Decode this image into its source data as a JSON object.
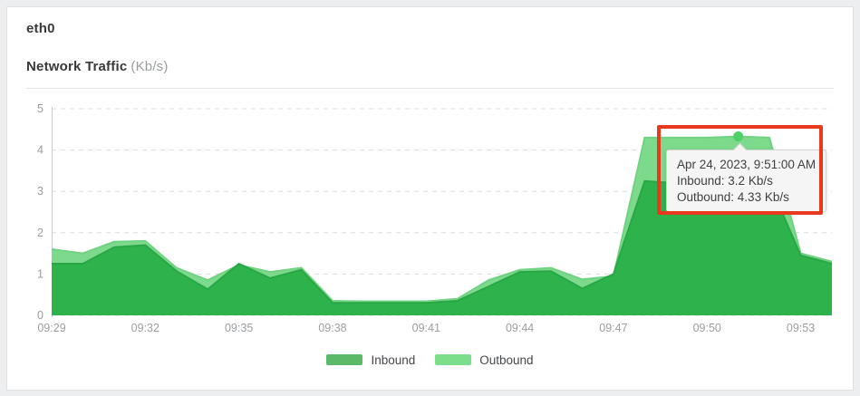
{
  "header": {
    "interface": "eth0",
    "title": "Network Traffic",
    "unit": "(Kb/s)"
  },
  "chart_data": {
    "type": "area",
    "title": "Network Traffic (Kb/s)",
    "xlabel": "",
    "ylabel": "",
    "ylim": [
      0,
      5
    ],
    "y_ticks": [
      0,
      1,
      2,
      3,
      4,
      5
    ],
    "grid": "dashed-horizontal",
    "legend_position": "bottom-center",
    "x": [
      "09:29",
      "09:30",
      "09:31",
      "09:32",
      "09:33",
      "09:34",
      "09:35",
      "09:36",
      "09:37",
      "09:38",
      "09:39",
      "09:40",
      "09:41",
      "09:42",
      "09:43",
      "09:44",
      "09:45",
      "09:46",
      "09:47",
      "09:48",
      "09:49",
      "09:50",
      "09:51",
      "09:52",
      "09:53",
      "09:54"
    ],
    "x_tick_labels": [
      "09:29",
      "09:32",
      "09:35",
      "09:38",
      "09:41",
      "09:44",
      "09:47",
      "09:50",
      "09:53"
    ],
    "series": [
      {
        "name": "Inbound",
        "fill_color": "#2eb24c",
        "edge_color": "#29a746",
        "values": [
          1.25,
          1.25,
          1.65,
          1.7,
          1.07,
          0.63,
          1.25,
          0.9,
          1.1,
          0.3,
          0.3,
          0.3,
          0.3,
          0.35,
          0.7,
          1.05,
          1.07,
          0.65,
          1.0,
          3.25,
          3.2,
          3.2,
          3.2,
          3.2,
          1.45,
          1.25
        ]
      },
      {
        "name": "Outbound",
        "fill_color": "#7dd98c",
        "edge_color": "#6fd381",
        "values": [
          1.6,
          1.5,
          1.78,
          1.8,
          1.15,
          0.85,
          1.22,
          1.05,
          1.15,
          0.35,
          0.34,
          0.34,
          0.34,
          0.4,
          0.85,
          1.1,
          1.15,
          0.87,
          0.95,
          4.3,
          4.3,
          4.3,
          4.33,
          4.3,
          1.5,
          1.3
        ]
      }
    ],
    "highlighted_point": {
      "time": "09:51",
      "series": "Outbound",
      "value": 4.33,
      "marker_color": "#4ed167"
    }
  },
  "tooltip": {
    "timestamp": "Apr 24, 2023, 9:51:00 AM",
    "inbound_line": "Inbound: 3.2 Kb/s",
    "outbound_line": "Outbound: 4.33 Kb/s"
  },
  "legend": {
    "items": [
      {
        "label": "Inbound",
        "color": "#5bb96a"
      },
      {
        "label": "Outbound",
        "color": "#7cde8a"
      }
    ]
  },
  "annotation": {
    "type": "highlight-box",
    "color": "#e8391f"
  }
}
